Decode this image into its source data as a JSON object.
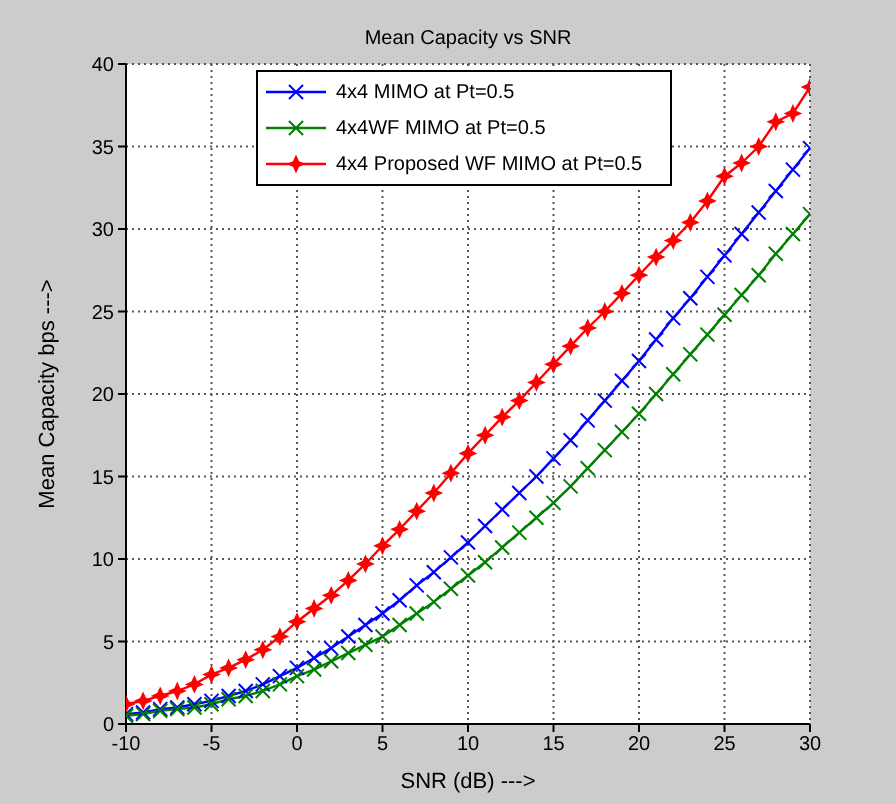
{
  "chart_data": {
    "type": "line",
    "title": "Mean Capacity vs SNR",
    "xlabel": "SNR (dB)     --->",
    "ylabel": "Mean Capacity bps     --->",
    "x": [
      -10,
      -9,
      -8,
      -7,
      -6,
      -5,
      -4,
      -3,
      -2,
      -1,
      0,
      1,
      2,
      3,
      4,
      5,
      6,
      7,
      8,
      9,
      10,
      11,
      12,
      13,
      14,
      15,
      16,
      17,
      18,
      19,
      20,
      21,
      22,
      23,
      24,
      25,
      26,
      27,
      28,
      29,
      30
    ],
    "series": [
      {
        "name": "4x4 MIMO at Pt=0.5",
        "color": "#0000ff",
        "marker": "cross",
        "values": [
          0.6,
          0.7,
          0.9,
          1.0,
          1.2,
          1.4,
          1.7,
          2.0,
          2.4,
          2.9,
          3.4,
          4.0,
          4.6,
          5.3,
          6.0,
          6.7,
          7.5,
          8.4,
          9.2,
          10.1,
          11.0,
          12.0,
          13.0,
          14.0,
          15.0,
          16.1,
          17.2,
          18.4,
          19.6,
          20.8,
          22.0,
          23.3,
          24.6,
          25.8,
          27.1,
          28.4,
          29.7,
          31.0,
          32.3,
          33.6,
          34.9
        ]
      },
      {
        "name": "4x4WF MIMO at Pt=0.5",
        "color": "#008000",
        "marker": "cross",
        "values": [
          0.5,
          0.6,
          0.8,
          0.9,
          1.0,
          1.2,
          1.5,
          1.7,
          2.0,
          2.4,
          2.9,
          3.3,
          3.8,
          4.3,
          4.8,
          5.3,
          6.0,
          6.7,
          7.4,
          8.2,
          9.0,
          9.8,
          10.7,
          11.6,
          12.5,
          13.4,
          14.4,
          15.5,
          16.6,
          17.7,
          18.8,
          20.0,
          21.2,
          22.4,
          23.6,
          24.8,
          26.0,
          27.2,
          28.5,
          29.7,
          30.9
        ]
      },
      {
        "name": "4x4 Proposed WF MIMO at Pt=0.5",
        "color": "#ff0000",
        "marker": "star",
        "values": [
          1.2,
          1.4,
          1.7,
          2.0,
          2.4,
          3.0,
          3.4,
          3.9,
          4.5,
          5.3,
          6.2,
          7.0,
          7.8,
          8.7,
          9.7,
          10.8,
          11.8,
          12.9,
          14.0,
          15.2,
          16.4,
          17.5,
          18.6,
          19.6,
          20.7,
          21.8,
          22.9,
          24.0,
          25.0,
          26.1,
          27.2,
          28.3,
          29.3,
          30.4,
          31.7,
          33.2,
          34.0,
          35.0,
          36.5,
          37.0,
          38.6
        ]
      }
    ],
    "xlim": [
      -10,
      30
    ],
    "xticks": [
      -10,
      -5,
      0,
      5,
      10,
      15,
      20,
      25,
      30
    ],
    "ylim": [
      0,
      40
    ],
    "yticks": [
      0,
      5,
      10,
      15,
      20,
      25,
      30,
      35,
      40
    ],
    "grid": true,
    "legend": "top right",
    "line_style": "solid"
  }
}
